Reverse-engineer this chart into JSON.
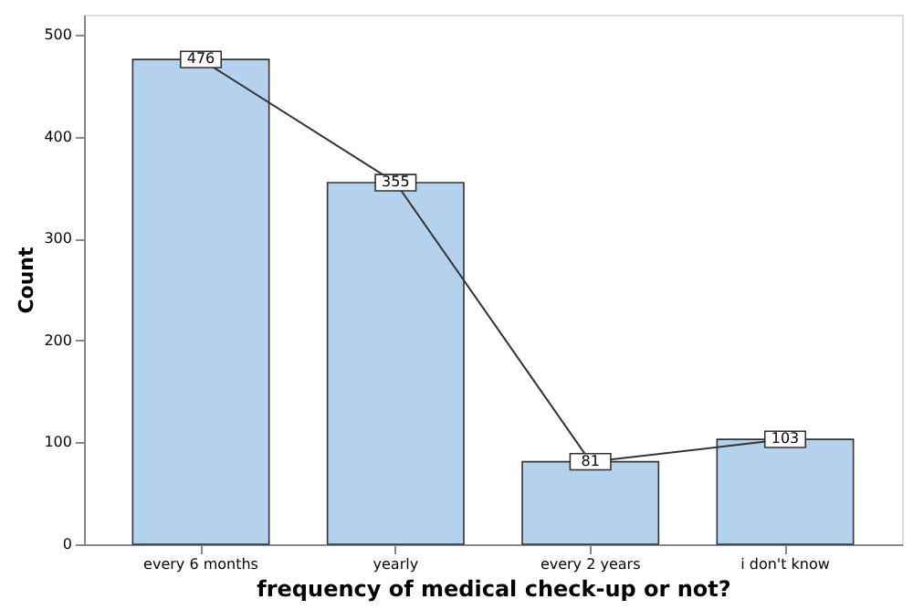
{
  "chart_data": {
    "type": "bar",
    "xlabel": "frequency of medical check-up or not?",
    "ylabel": "Count",
    "categories": [
      "every 6 months",
      "yearly",
      "every 2 years",
      "i don't know"
    ],
    "series": [
      {
        "color": "#b4d1ee",
        "values": [
          476,
          355,
          81,
          103
        ]
      },
      {
        "type": "line",
        "color": "#333333",
        "marker": "square",
        "values": [
          476,
          355,
          81,
          103
        ],
        "value_labels": [
          "476",
          "355",
          "81",
          "103"
        ]
      }
    ],
    "ylim": [
      0,
      520
    ],
    "yticks": [
      0,
      100,
      200,
      300,
      400,
      500
    ],
    "grid": false
  }
}
